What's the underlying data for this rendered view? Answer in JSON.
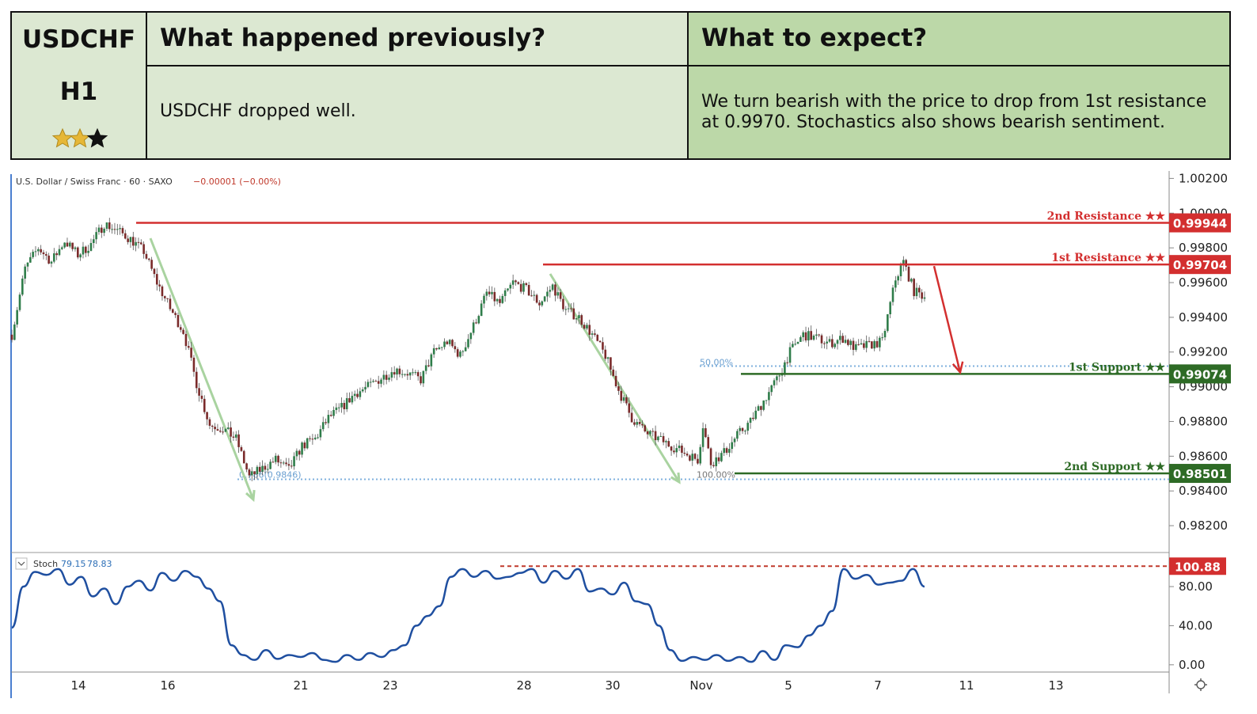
{
  "header": {
    "pair": "USDCHF",
    "timeframe": "H1",
    "stars_filled": 2,
    "stars_total": 3,
    "previous_title": "What happened previously?",
    "previous_text": "USDCHF dropped well.",
    "expect_title": "What to expect?",
    "expect_text": "We turn bearish with the price to drop from 1st resistance at 0.9970. Stochastics also shows bearish sentiment.",
    "colors": {
      "left": "#dce8d2",
      "right": "#bcd8a8",
      "border": "#111111"
    }
  },
  "chart_data": {
    "type": "candlestick",
    "symbol_title": "U.S. Dollar / Swiss Franc · 60 · SAXO",
    "change_text": "−0.00001 (−0.00%)",
    "x_ticks": [
      "14",
      "16",
      "21",
      "23",
      "28",
      "30",
      "Nov",
      "5",
      "7",
      "11",
      "13"
    ],
    "y_ticks": [
      "1.00200",
      "1.00000",
      "0.99800",
      "0.99600",
      "0.99400",
      "0.99200",
      "0.99000",
      "0.98800",
      "0.98600",
      "0.98400",
      "0.98200"
    ],
    "ylim": [
      0.981,
      1.0022
    ],
    "price_path": [
      [
        0,
        0.993
      ],
      [
        5,
        0.9968
      ],
      [
        10,
        0.998
      ],
      [
        15,
        0.9972
      ],
      [
        20,
        0.9984
      ],
      [
        25,
        0.9976
      ],
      [
        30,
        0.9982
      ],
      [
        35,
        0.9994
      ],
      [
        40,
        0.999
      ],
      [
        45,
        0.9985
      ],
      [
        50,
        0.9978
      ],
      [
        55,
        0.996
      ],
      [
        60,
        0.9945
      ],
      [
        65,
        0.9932
      ],
      [
        70,
        0.9902
      ],
      [
        75,
        0.9878
      ],
      [
        80,
        0.9876
      ],
      [
        85,
        0.987
      ],
      [
        90,
        0.9848
      ],
      [
        95,
        0.9853
      ],
      [
        100,
        0.9858
      ],
      [
        105,
        0.9852
      ],
      [
        110,
        0.9866
      ],
      [
        115,
        0.987
      ],
      [
        120,
        0.9882
      ],
      [
        125,
        0.9888
      ],
      [
        130,
        0.9896
      ],
      [
        135,
        0.99
      ],
      [
        140,
        0.9905
      ],
      [
        145,
        0.991
      ],
      [
        150,
        0.9908
      ],
      [
        155,
        0.9904
      ],
      [
        160,
        0.992
      ],
      [
        165,
        0.9926
      ],
      [
        170,
        0.9918
      ],
      [
        175,
        0.9935
      ],
      [
        180,
        0.9954
      ],
      [
        185,
        0.9948
      ],
      [
        190,
        0.996
      ],
      [
        195,
        0.9956
      ],
      [
        200,
        0.9948
      ],
      [
        205,
        0.9958
      ],
      [
        210,
        0.9944
      ],
      [
        215,
        0.994
      ],
      [
        220,
        0.993
      ],
      [
        225,
        0.9918
      ],
      [
        230,
        0.9898
      ],
      [
        235,
        0.9882
      ],
      [
        240,
        0.9874
      ],
      [
        245,
        0.987
      ],
      [
        250,
        0.9866
      ],
      [
        255,
        0.9862
      ],
      [
        260,
        0.9858
      ],
      [
        262,
        0.9878
      ],
      [
        265,
        0.9856
      ],
      [
        270,
        0.9862
      ],
      [
        275,
        0.9872
      ],
      [
        280,
        0.988
      ],
      [
        285,
        0.9892
      ],
      [
        290,
        0.9904
      ],
      [
        295,
        0.992
      ],
      [
        300,
        0.993
      ],
      [
        305,
        0.9928
      ],
      [
        310,
        0.9925
      ],
      [
        315,
        0.9928
      ],
      [
        320,
        0.9922
      ],
      [
        325,
        0.9924
      ],
      [
        330,
        0.9926
      ],
      [
        335,
        0.9962
      ],
      [
        338,
        0.9972
      ],
      [
        342,
        0.9955
      ],
      [
        346,
        0.9952
      ]
    ],
    "levels": [
      {
        "name": "2nd Resistance ★★",
        "value": 0.99944,
        "label": "0.99944",
        "color": "#d32f2f"
      },
      {
        "name": "1st Resistance ★★",
        "value": 0.99704,
        "label": "0.99704",
        "color": "#d32f2f"
      },
      {
        "name": "1st Support ★★",
        "value": 0.99074,
        "label": "0.99074",
        "color": "#2e6b26"
      },
      {
        "name": "2nd Support ★★",
        "value": 0.98501,
        "label": "0.98501",
        "color": "#2e6b26"
      }
    ],
    "fib_labels": [
      "0.786(0.9846)",
      "50.00%",
      "100.00%"
    ],
    "stoch": {
      "label": "Stoch",
      "k": "79.15",
      "d": "78.83",
      "y_ticks": [
        "80.00",
        "40.00",
        "0.00"
      ],
      "ylim": [
        -5,
        110
      ],
      "level_label": "100.88",
      "level_value": 100.88,
      "values": [
        [
          0,
          38
        ],
        [
          3,
          80
        ],
        [
          6,
          95
        ],
        [
          9,
          92
        ],
        [
          12,
          98
        ],
        [
          15,
          82
        ],
        [
          18,
          90
        ],
        [
          21,
          70
        ],
        [
          24,
          78
        ],
        [
          27,
          62
        ],
        [
          30,
          80
        ],
        [
          33,
          86
        ],
        [
          36,
          76
        ],
        [
          39,
          94
        ],
        [
          42,
          86
        ],
        [
          45,
          96
        ],
        [
          48,
          90
        ],
        [
          51,
          78
        ],
        [
          54,
          65
        ],
        [
          57,
          20
        ],
        [
          60,
          10
        ],
        [
          63,
          5
        ],
        [
          66,
          15
        ],
        [
          69,
          6
        ],
        [
          72,
          10
        ],
        [
          75,
          8
        ],
        [
          78,
          12
        ],
        [
          81,
          5
        ],
        [
          84,
          3
        ],
        [
          87,
          10
        ],
        [
          90,
          5
        ],
        [
          93,
          12
        ],
        [
          96,
          8
        ],
        [
          99,
          15
        ],
        [
          102,
          20
        ],
        [
          105,
          40
        ],
        [
          108,
          50
        ],
        [
          111,
          60
        ],
        [
          114,
          90
        ],
        [
          117,
          98
        ],
        [
          120,
          90
        ],
        [
          123,
          96
        ],
        [
          126,
          88
        ],
        [
          129,
          90
        ],
        [
          132,
          94
        ],
        [
          135,
          98
        ],
        [
          138,
          84
        ],
        [
          141,
          96
        ],
        [
          144,
          88
        ],
        [
          147,
          98
        ],
        [
          150,
          75
        ],
        [
          153,
          78
        ],
        [
          156,
          72
        ],
        [
          159,
          84
        ],
        [
          162,
          65
        ],
        [
          165,
          62
        ],
        [
          168,
          40
        ],
        [
          171,
          15
        ],
        [
          174,
          4
        ],
        [
          177,
          8
        ],
        [
          180,
          5
        ],
        [
          183,
          10
        ],
        [
          186,
          4
        ],
        [
          189,
          8
        ],
        [
          192,
          3
        ],
        [
          195,
          14
        ],
        [
          198,
          5
        ],
        [
          201,
          20
        ],
        [
          204,
          18
        ],
        [
          207,
          30
        ],
        [
          210,
          40
        ],
        [
          213,
          55
        ],
        [
          216,
          98
        ],
        [
          219,
          88
        ],
        [
          222,
          92
        ],
        [
          225,
          82
        ],
        [
          228,
          84
        ],
        [
          231,
          86
        ],
        [
          234,
          98
        ],
        [
          237,
          80
        ]
      ]
    }
  }
}
